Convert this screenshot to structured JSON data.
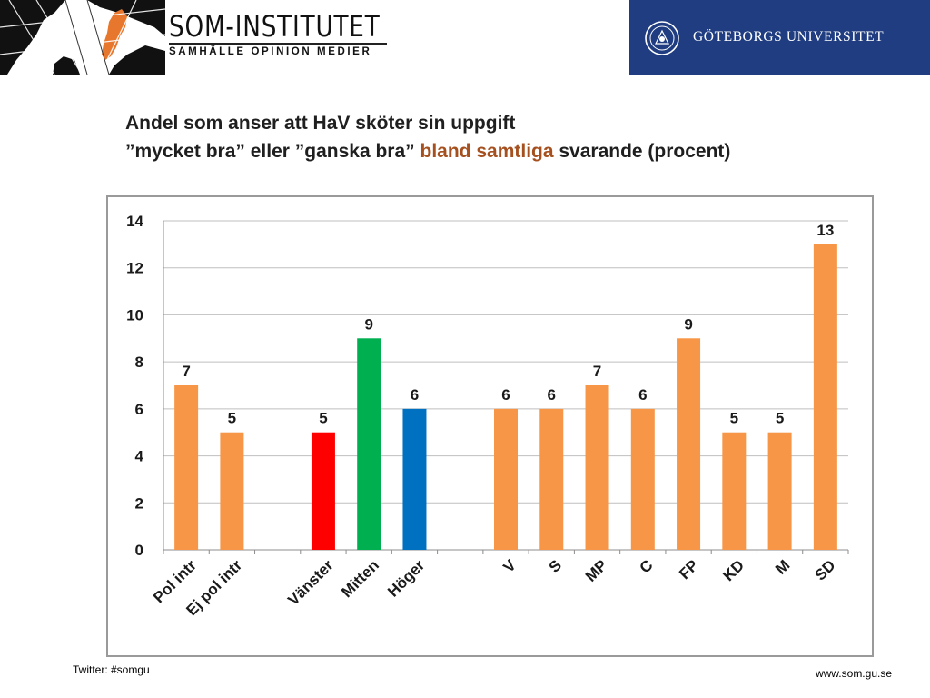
{
  "header": {
    "brand_title": "SOM-INSTITUTET",
    "brand_subtitle": "SAMHÄLLE   OPINION   MEDIER",
    "university": "GÖTEBORGS UNIVERSITET"
  },
  "slide": {
    "title_line1": "Andel som anser att HaV sköter sin uppgift",
    "title_line2_a": "”mycket bra” eller ”ganska bra” ",
    "title_line2_highlight": "bland samtliga",
    "title_line2_b": " svarande (procent)"
  },
  "footer": {
    "left": "Twitter: #somgu",
    "right": "www.som.gu.se"
  },
  "colors": {
    "orange": "#f79646",
    "red": "#ff0000",
    "green": "#00b050",
    "blue": "#0070c0",
    "highlight": "#a5501e",
    "gu_blue": "#1f3d80"
  },
  "chart_data": {
    "type": "bar",
    "title": "",
    "xlabel": "",
    "ylabel": "",
    "ylim": [
      0,
      14
    ],
    "yticks": [
      "0",
      "2",
      "4",
      "6",
      "8",
      "10",
      "12",
      "14"
    ],
    "grid": true,
    "legend": "none",
    "categories": [
      "Pol intr",
      "Ej pol intr",
      "",
      "Vänster",
      "Mitten",
      "Höger",
      "",
      "V",
      "S",
      "MP",
      "C",
      "FP",
      "KD",
      "M",
      "SD"
    ],
    "values": [
      7,
      5,
      null,
      5,
      9,
      6,
      null,
      6,
      6,
      7,
      6,
      9,
      5,
      5,
      13
    ],
    "value_labels": [
      "7",
      "5",
      "",
      "5",
      "9",
      "6",
      "",
      "6",
      "6",
      "7",
      "6",
      "9",
      "5",
      "5",
      "13"
    ],
    "bar_colors": [
      "#f79646",
      "#f79646",
      "",
      "#ff0000",
      "#00b050",
      "#0070c0",
      "",
      "#f79646",
      "#f79646",
      "#f79646",
      "#f79646",
      "#f79646",
      "#f79646",
      "#f79646",
      "#f79646"
    ]
  }
}
